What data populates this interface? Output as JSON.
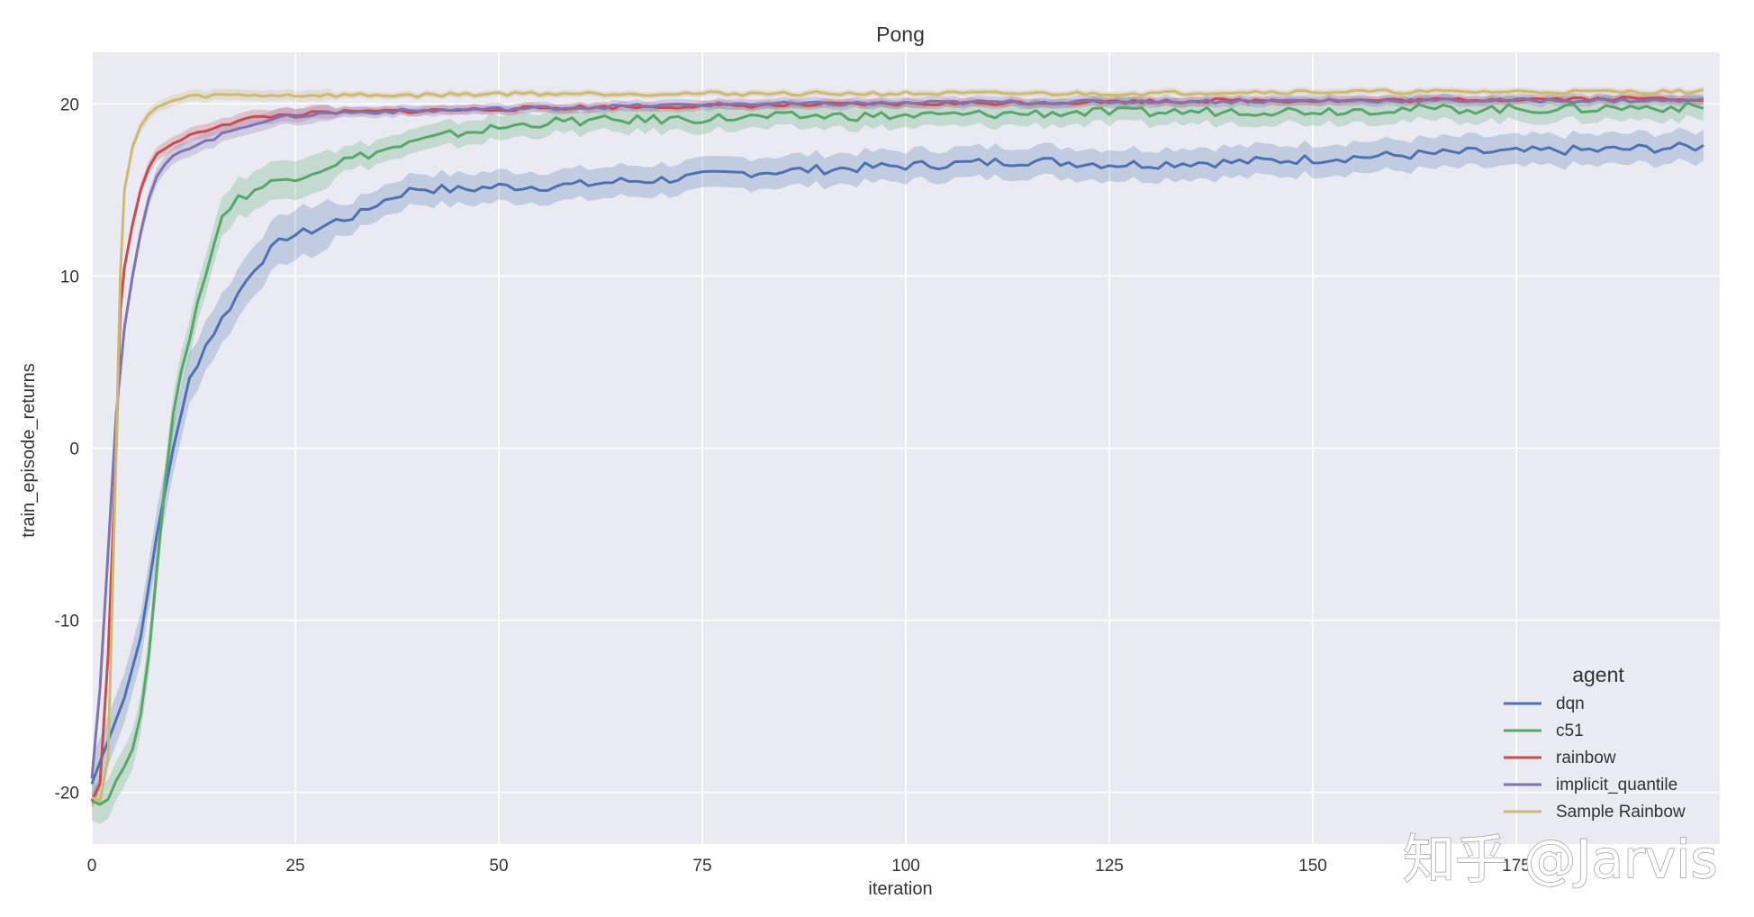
{
  "watermark": "知乎 @Jarvis",
  "chart_data": {
    "type": "line",
    "title": "Pong",
    "xlabel": "iteration",
    "ylabel": "train_episode_returns",
    "xlim": [
      0,
      200
    ],
    "ylim": [
      -23,
      23
    ],
    "x_ticks": [
      0,
      25,
      50,
      75,
      100,
      125,
      150,
      175
    ],
    "y_ticks": [
      -20,
      -10,
      0,
      10,
      20
    ],
    "grid": true,
    "legend": {
      "title": "agent",
      "position": "bottom-right"
    },
    "series": [
      {
        "name": "dqn",
        "color": "#4c72b0",
        "band": 0.9,
        "points": [
          [
            0,
            -19.5
          ],
          [
            2,
            -17
          ],
          [
            4,
            -14.5
          ],
          [
            6,
            -11
          ],
          [
            8,
            -5
          ],
          [
            10,
            0
          ],
          [
            12,
            4
          ],
          [
            14,
            6
          ],
          [
            16,
            7.5
          ],
          [
            18,
            9
          ],
          [
            20,
            10.5
          ],
          [
            22,
            11.5
          ],
          [
            24,
            12.3
          ],
          [
            26,
            12.5
          ],
          [
            28,
            12.8
          ],
          [
            30,
            13.2
          ],
          [
            33,
            13.6
          ],
          [
            35,
            14.2
          ],
          [
            38,
            14.8
          ],
          [
            40,
            15.1
          ],
          [
            45,
            15.0
          ],
          [
            50,
            15.2
          ],
          [
            55,
            15.2
          ],
          [
            60,
            15.3
          ],
          [
            65,
            15.5
          ],
          [
            70,
            15.6
          ],
          [
            75,
            15.8
          ],
          [
            80,
            16.0
          ],
          [
            85,
            16.1
          ],
          [
            90,
            16.2
          ],
          [
            95,
            16.3
          ],
          [
            100,
            16.4
          ],
          [
            105,
            16.5
          ],
          [
            110,
            16.6
          ],
          [
            115,
            16.7
          ],
          [
            120,
            16.6
          ],
          [
            125,
            16.5
          ],
          [
            130,
            16.5
          ],
          [
            135,
            16.6
          ],
          [
            140,
            16.6
          ],
          [
            145,
            16.7
          ],
          [
            150,
            16.8
          ],
          [
            155,
            16.9
          ],
          [
            160,
            17.0
          ],
          [
            165,
            17.1
          ],
          [
            170,
            17.2
          ],
          [
            175,
            17.2
          ],
          [
            180,
            17.3
          ],
          [
            185,
            17.3
          ],
          [
            190,
            17.4
          ],
          [
            198,
            17.5
          ]
        ]
      },
      {
        "name": "c51",
        "color": "#55a868",
        "band": 0.7,
        "points": [
          [
            0,
            -20.5
          ],
          [
            1,
            -20.7
          ],
          [
            2,
            -20.4
          ],
          [
            3,
            -19.3
          ],
          [
            4,
            -18.5
          ],
          [
            5,
            -17.5
          ],
          [
            6,
            -15.5
          ],
          [
            7,
            -12
          ],
          [
            8,
            -7
          ],
          [
            9,
            -2
          ],
          [
            10,
            2
          ],
          [
            11,
            4.5
          ],
          [
            12,
            6.5
          ],
          [
            13,
            8.5
          ],
          [
            14,
            10
          ],
          [
            15,
            12
          ],
          [
            16,
            13.5
          ],
          [
            18,
            14.5
          ],
          [
            20,
            15
          ],
          [
            22,
            15.4
          ],
          [
            25,
            15.8
          ],
          [
            28,
            16.2
          ],
          [
            30,
            16.6
          ],
          [
            35,
            17.2
          ],
          [
            40,
            17.8
          ],
          [
            45,
            18.3
          ],
          [
            50,
            18.6
          ],
          [
            55,
            18.9
          ],
          [
            60,
            19.0
          ],
          [
            70,
            19.1
          ],
          [
            80,
            19.2
          ],
          [
            90,
            19.3
          ],
          [
            100,
            19.3
          ],
          [
            110,
            19.4
          ],
          [
            120,
            19.5
          ],
          [
            130,
            19.5
          ],
          [
            140,
            19.6
          ],
          [
            150,
            19.6
          ],
          [
            160,
            19.7
          ],
          [
            170,
            19.7
          ],
          [
            180,
            19.7
          ],
          [
            190,
            19.8
          ],
          [
            198,
            19.8
          ]
        ]
      },
      {
        "name": "rainbow",
        "color": "#c44e52",
        "band": 0.25,
        "points": [
          [
            0,
            -20.5
          ],
          [
            1,
            -19.5
          ],
          [
            2,
            -12
          ],
          [
            3,
            0
          ],
          [
            3.5,
            8
          ],
          [
            4,
            10.5
          ],
          [
            5,
            13
          ],
          [
            6,
            15
          ],
          [
            7,
            16.3
          ],
          [
            8,
            17.1
          ],
          [
            10,
            17.7
          ],
          [
            12,
            18.1
          ],
          [
            14,
            18.5
          ],
          [
            16,
            18.8
          ],
          [
            18,
            19.0
          ],
          [
            20,
            19.2
          ],
          [
            25,
            19.4
          ],
          [
            30,
            19.5
          ],
          [
            40,
            19.6
          ],
          [
            50,
            19.7
          ],
          [
            60,
            19.8
          ],
          [
            70,
            19.85
          ],
          [
            80,
            19.9
          ],
          [
            90,
            19.95
          ],
          [
            100,
            20.0
          ],
          [
            110,
            20.05
          ],
          [
            120,
            20.1
          ],
          [
            130,
            20.15
          ],
          [
            140,
            20.2
          ],
          [
            150,
            20.2
          ],
          [
            160,
            20.2
          ],
          [
            170,
            20.25
          ],
          [
            180,
            20.3
          ],
          [
            190,
            20.3
          ],
          [
            198,
            20.3
          ]
        ]
      },
      {
        "name": "implicit_quantile",
        "color": "#8172b2",
        "band": 0.3,
        "points": [
          [
            0,
            -19.2
          ],
          [
            1,
            -14
          ],
          [
            2,
            -6
          ],
          [
            3,
            2
          ],
          [
            4,
            7
          ],
          [
            5,
            10
          ],
          [
            6,
            12.5
          ],
          [
            7,
            14.5
          ],
          [
            8,
            15.8
          ],
          [
            9,
            16.5
          ],
          [
            10,
            17.0
          ],
          [
            12,
            17.5
          ],
          [
            14,
            17.8
          ],
          [
            16,
            18.2
          ],
          [
            18,
            18.6
          ],
          [
            20,
            18.9
          ],
          [
            22,
            19.1
          ],
          [
            25,
            19.3
          ],
          [
            30,
            19.5
          ],
          [
            40,
            19.6
          ],
          [
            50,
            19.7
          ],
          [
            60,
            19.8
          ],
          [
            70,
            19.9
          ],
          [
            80,
            20.0
          ],
          [
            90,
            20.0
          ],
          [
            100,
            20.05
          ],
          [
            110,
            20.1
          ],
          [
            120,
            20.1
          ],
          [
            130,
            20.15
          ],
          [
            140,
            20.15
          ],
          [
            150,
            20.2
          ],
          [
            160,
            20.2
          ],
          [
            170,
            20.2
          ],
          [
            180,
            20.2
          ],
          [
            190,
            20.2
          ],
          [
            198,
            20.2
          ]
        ]
      },
      {
        "name": "Sample Rainbow",
        "color": "#ccb974",
        "band": 0.2,
        "points": [
          [
            0,
            -20.3
          ],
          [
            1,
            -20.5
          ],
          [
            2,
            -18
          ],
          [
            3,
            0
          ],
          [
            3.5,
            10
          ],
          [
            4,
            15
          ],
          [
            5,
            17.5
          ],
          [
            6,
            18.7
          ],
          [
            7,
            19.4
          ],
          [
            8,
            19.8
          ],
          [
            9,
            20.0
          ],
          [
            10,
            20.2
          ],
          [
            12,
            20.4
          ],
          [
            15,
            20.5
          ],
          [
            20,
            20.5
          ],
          [
            30,
            20.5
          ],
          [
            40,
            20.5
          ],
          [
            50,
            20.6
          ],
          [
            60,
            20.6
          ],
          [
            70,
            20.6
          ],
          [
            80,
            20.6
          ],
          [
            90,
            20.6
          ],
          [
            100,
            20.6
          ],
          [
            110,
            20.6
          ],
          [
            120,
            20.6
          ],
          [
            130,
            20.6
          ],
          [
            140,
            20.7
          ],
          [
            150,
            20.7
          ],
          [
            160,
            20.7
          ],
          [
            170,
            20.7
          ],
          [
            180,
            20.7
          ],
          [
            190,
            20.7
          ],
          [
            198,
            20.7
          ]
        ]
      }
    ]
  }
}
